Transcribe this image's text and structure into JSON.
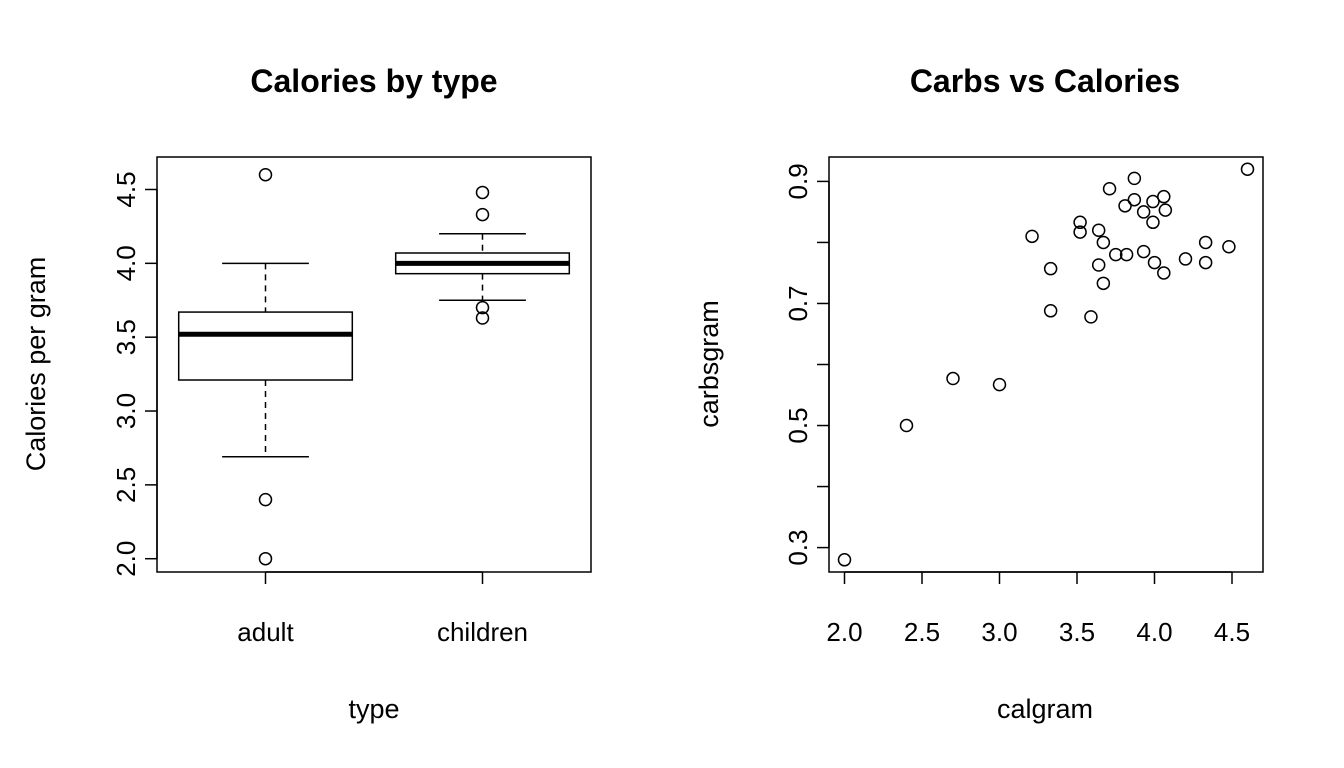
{
  "chart_data": [
    {
      "type": "box",
      "title": "Calories by type",
      "xlabel": "type",
      "ylabel": "Calories per gram",
      "ylim": [
        1.91,
        4.72
      ],
      "yticks": [
        2.0,
        2.5,
        3.0,
        3.5,
        4.0,
        4.5
      ],
      "ytick_labels": [
        "2.0",
        "2.5",
        "3.0",
        "3.5",
        "4.0",
        "4.5"
      ],
      "categories": [
        "adult",
        "children"
      ],
      "groups": [
        {
          "category": "adult",
          "whisker_low": 2.69,
          "q1": 3.21,
          "median": 3.52,
          "q3": 3.67,
          "whisker_high": 4.0,
          "outliers": [
            4.6,
            2.4,
            2.0
          ]
        },
        {
          "category": "children",
          "whisker_low": 3.75,
          "q1": 3.93,
          "median": 4.0,
          "q3": 4.07,
          "whisker_high": 4.2,
          "outliers": [
            4.48,
            4.33,
            3.7,
            3.63
          ]
        }
      ],
      "grid": false,
      "legend": "none"
    },
    {
      "type": "scatter",
      "title": "Carbs vs Calories",
      "xlabel": "calgram",
      "ylabel": "carbsgram",
      "xlim": [
        1.9,
        4.7
      ],
      "ylim": [
        0.26,
        0.94
      ],
      "xticks": [
        2.0,
        2.5,
        3.0,
        3.5,
        4.0,
        4.5
      ],
      "xtick_labels": [
        "2.0",
        "2.5",
        "3.0",
        "3.5",
        "4.0",
        "4.5"
      ],
      "yticks": [
        0.3,
        0.4,
        0.5,
        0.6,
        0.7,
        0.8,
        0.9
      ],
      "ytick_labels": [
        "0.3",
        "",
        "0.5",
        "",
        "0.7",
        "",
        "0.9"
      ],
      "points": [
        [
          2.0,
          0.28
        ],
        [
          2.4,
          0.5
        ],
        [
          2.7,
          0.577
        ],
        [
          3.0,
          0.567
        ],
        [
          3.21,
          0.81
        ],
        [
          3.33,
          0.757
        ],
        [
          3.33,
          0.688
        ],
        [
          3.52,
          0.833
        ],
        [
          3.52,
          0.817
        ],
        [
          3.59,
          0.678
        ],
        [
          3.64,
          0.82
        ],
        [
          3.64,
          0.763
        ],
        [
          3.67,
          0.8
        ],
        [
          3.67,
          0.733
        ],
        [
          3.71,
          0.888
        ],
        [
          3.75,
          0.78
        ],
        [
          3.81,
          0.86
        ],
        [
          3.82,
          0.78
        ],
        [
          3.87,
          0.905
        ],
        [
          3.87,
          0.87
        ],
        [
          3.93,
          0.85
        ],
        [
          3.93,
          0.785
        ],
        [
          3.99,
          0.867
        ],
        [
          3.99,
          0.833
        ],
        [
          4.0,
          0.767
        ],
        [
          4.06,
          0.875
        ],
        [
          4.06,
          0.75
        ],
        [
          4.07,
          0.853
        ],
        [
          4.2,
          0.773
        ],
        [
          4.33,
          0.8
        ],
        [
          4.33,
          0.767
        ],
        [
          4.48,
          0.793
        ],
        [
          4.6,
          0.92
        ]
      ],
      "grid": false,
      "legend": "none"
    }
  ]
}
